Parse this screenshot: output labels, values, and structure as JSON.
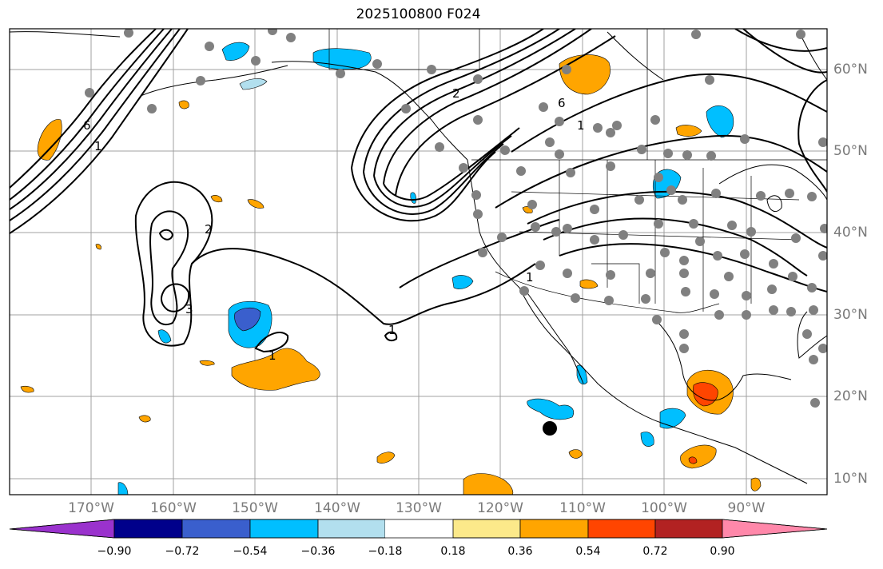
{
  "title": "2025100800 F024",
  "longitude_labels": [
    "170°W",
    "160°W",
    "150°W",
    "140°W",
    "130°W",
    "120°W",
    "110°W",
    "100°W",
    "90°W"
  ],
  "latitude_labels": [
    "60°N",
    "50°N",
    "40°N",
    "30°N",
    "20°N",
    "10°N"
  ],
  "contour_labels": [
    "6",
    "1",
    "2",
    "3",
    "6",
    "1",
    "2",
    "1",
    "1",
    "1"
  ],
  "colorbar": {
    "tick_labels": [
      "−0.90",
      "−0.72",
      "−0.54",
      "−0.36",
      "−0.18",
      "0.18",
      "0.36",
      "0.54",
      "0.72",
      "0.90"
    ],
    "colors": [
      "#9a32cd",
      "#00008b",
      "#3a5fcd",
      "#00bfff",
      "#b2dfee",
      "#ffffff",
      "#fce98a",
      "#ffa500",
      "#ff4500",
      "#b22222",
      "#ff88aa"
    ]
  },
  "colors": {
    "station_marker": "#808080",
    "highlight_marker": "#000000",
    "gridline": "#a0a0a0",
    "contour": "#000000"
  }
}
